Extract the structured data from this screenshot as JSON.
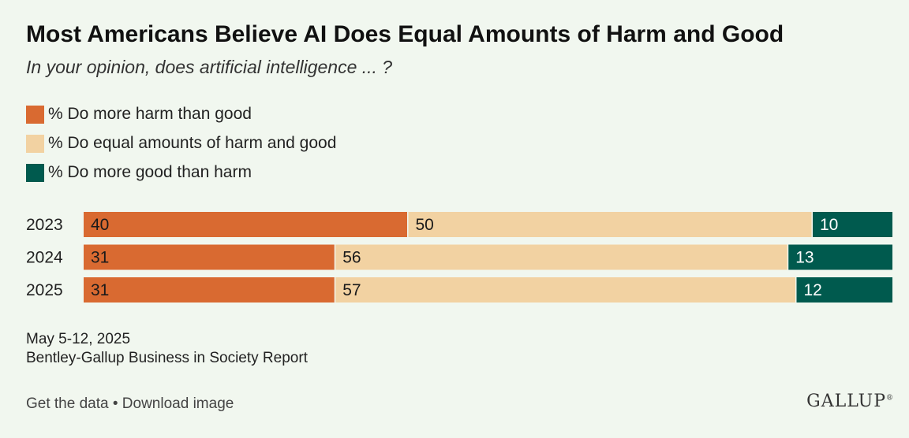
{
  "title": "Most Americans Believe AI Does Equal Amounts of Harm and Good",
  "subtitle": "In your opinion, does artificial intelligence ... ?",
  "colors": {
    "harm": "#d96a31",
    "equal": "#f2d2a2",
    "good": "#005a4e",
    "background": "#f1f7ef"
  },
  "chart_data": {
    "type": "bar",
    "orientation": "horizontal",
    "stacked": true,
    "categories": [
      "2023",
      "2024",
      "2025"
    ],
    "series": [
      {
        "name": "% Do more harm than good",
        "values": [
          40,
          31,
          31
        ]
      },
      {
        "name": "% Do equal amounts of harm and good",
        "values": [
          50,
          56,
          57
        ]
      },
      {
        "name": "% Do more good than harm",
        "values": [
          10,
          13,
          12
        ]
      }
    ],
    "xlim": [
      0,
      100
    ],
    "grid": false,
    "legend_position": "top-left"
  },
  "footer": {
    "date": "May 5-12, 2025",
    "source": "Bentley-Gallup Business in Society Report"
  },
  "links": {
    "get_data": "Get the data",
    "separator": " • ",
    "download": "Download image"
  },
  "logo": {
    "text": "GALLUP",
    "mark": "®"
  }
}
